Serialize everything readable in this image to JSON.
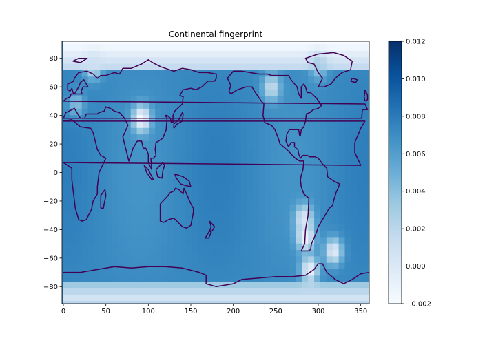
{
  "chart_data": {
    "type": "heatmap",
    "title": "Continental fingerprint",
    "xlabel": "",
    "ylabel": "",
    "xlim": [
      0,
      360
    ],
    "ylim": [
      -90,
      90
    ],
    "x_ticks": [
      0,
      50,
      100,
      150,
      200,
      250,
      300,
      350
    ],
    "y_ticks": [
      -80,
      -60,
      -40,
      -20,
      0,
      20,
      40,
      60,
      80
    ],
    "colorbar": {
      "colormap": "Blues",
      "vmin": -0.002,
      "vmax": 0.012,
      "ticks": [
        "−0.002",
        "0.000",
        "0.002",
        "0.004",
        "0.006",
        "0.008",
        "0.010",
        "0.012"
      ],
      "tick_values": [
        -0.002,
        0.0,
        0.002,
        0.004,
        0.006,
        0.008,
        0.01,
        0.012
      ]
    },
    "field": {
      "background_value": 0.0072,
      "polar_north_value": -0.002,
      "polar_south_value": 0.0,
      "low_spots": [
        {
          "lon": 92,
          "lat": 38,
          "value": -0.002
        },
        {
          "lon": 285,
          "lat": -45,
          "value": -0.0015
        },
        {
          "lon": 283,
          "lat": -32,
          "value": 0.0
        },
        {
          "lon": 318,
          "lat": -55,
          "value": -0.0005
        },
        {
          "lon": 290,
          "lat": -68,
          "value": -0.001
        },
        {
          "lon": 245,
          "lat": 60,
          "value": 0.0015
        },
        {
          "lon": 15,
          "lat": 48,
          "value": 0.004
        },
        {
          "lon": 35,
          "lat": 75,
          "value": 0.001
        },
        {
          "lon": 300,
          "lat": 75,
          "value": 0.003
        }
      ]
    },
    "contour": {
      "label": "coastlines",
      "color": "#440154",
      "line_width": 1.5
    }
  }
}
